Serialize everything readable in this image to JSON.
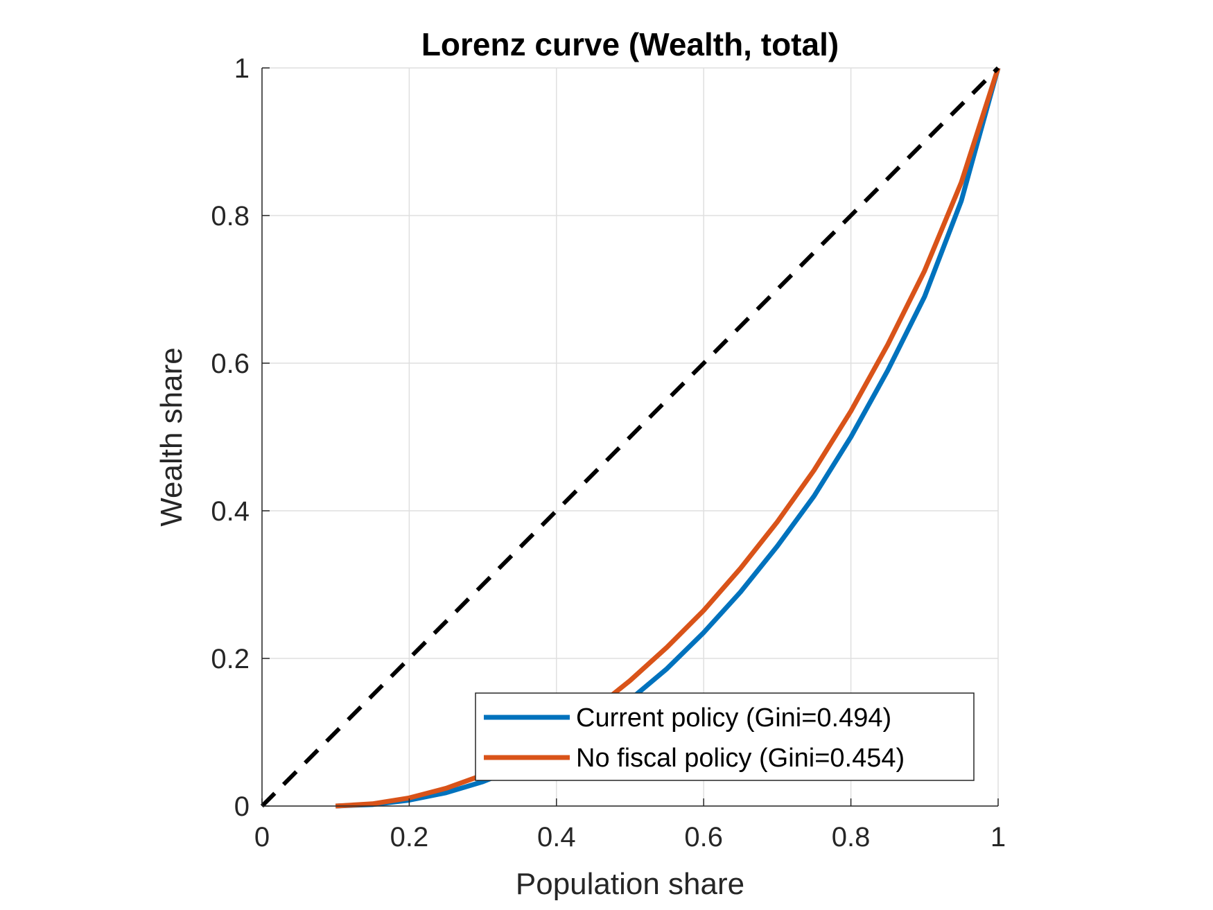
{
  "chart_data": {
    "type": "line",
    "title": "Lorenz curve (Wealth, total)",
    "xlabel": "Population share",
    "ylabel": "Wealth share",
    "xlim": [
      0,
      1
    ],
    "ylim": [
      0,
      1
    ],
    "xticks": [
      "0",
      "0.2",
      "0.4",
      "0.6",
      "0.8",
      "1"
    ],
    "yticks": [
      "0",
      "0.2",
      "0.4",
      "0.6",
      "0.8",
      "1"
    ],
    "grid": true,
    "legend_position": "bottom-right",
    "series": [
      {
        "name": "Current policy (Gini=0.494)",
        "color": "#0072BD",
        "style": "solid",
        "x": [
          0.1,
          0.15,
          0.2,
          0.25,
          0.3,
          0.35,
          0.4,
          0.45,
          0.5,
          0.55,
          0.6,
          0.65,
          0.7,
          0.75,
          0.8,
          0.85,
          0.9,
          0.95,
          1.0
        ],
        "y": [
          0.0,
          0.002,
          0.008,
          0.018,
          0.033,
          0.053,
          0.078,
          0.108,
          0.144,
          0.186,
          0.235,
          0.29,
          0.352,
          0.42,
          0.5,
          0.59,
          0.69,
          0.82,
          1.0
        ]
      },
      {
        "name": "No fiscal policy (Gini=0.454)",
        "color": "#D95319",
        "style": "solid",
        "x": [
          0.1,
          0.15,
          0.2,
          0.25,
          0.3,
          0.35,
          0.4,
          0.45,
          0.5,
          0.55,
          0.6,
          0.65,
          0.7,
          0.75,
          0.8,
          0.85,
          0.9,
          0.95,
          1.0
        ],
        "y": [
          0.0,
          0.003,
          0.011,
          0.024,
          0.042,
          0.066,
          0.095,
          0.13,
          0.17,
          0.215,
          0.265,
          0.322,
          0.385,
          0.455,
          0.535,
          0.625,
          0.725,
          0.845,
          1.0
        ]
      },
      {
        "color": "#000000",
        "style": "dashed",
        "x": [
          0,
          1
        ],
        "y": [
          0,
          1
        ]
      }
    ]
  }
}
